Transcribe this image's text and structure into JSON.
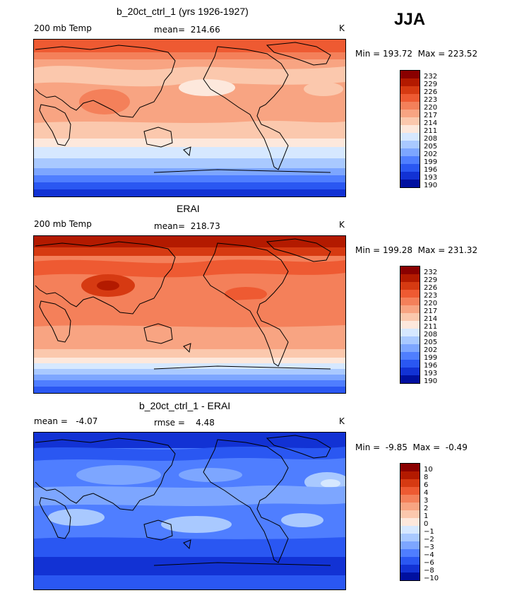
{
  "season": "JJA",
  "panels": [
    {
      "title": "b_20ct_ctrl_1 (yrs 1926-1927)",
      "left_label": "200 mb Temp",
      "center_label": "mean=  214.66",
      "right_label": "K",
      "minmax": "Min = 193.72  Max = 223.52",
      "colorbar": [
        "232",
        "229",
        "226",
        "223",
        "220",
        "217",
        "214",
        "211",
        "208",
        "205",
        "202",
        "199",
        "196",
        "193",
        "190"
      ]
    },
    {
      "title": "ERAI",
      "left_label": "200 mb Temp",
      "center_label": "mean=  218.73",
      "right_label": "K",
      "minmax": "Min = 199.28  Max = 231.32",
      "colorbar": [
        "232",
        "229",
        "226",
        "223",
        "220",
        "217",
        "214",
        "211",
        "208",
        "205",
        "202",
        "199",
        "196",
        "193",
        "190"
      ]
    },
    {
      "title": "b_20ct_ctrl_1 - ERAI",
      "left_label": "mean =   -4.07",
      "center_label": "rmse =    4.48",
      "right_label": "K",
      "minmax": "Min =  -9.85  Max =  -0.49",
      "colorbar": [
        "10",
        "8",
        "6",
        "4",
        "3",
        "2",
        "1",
        "0",
        "−1",
        "−2",
        "−3",
        "−4",
        "−6",
        "−8",
        "−10"
      ]
    }
  ],
  "colors": {
    "scale": [
      "#8a0000",
      "#b31a00",
      "#d63a12",
      "#ee5a32",
      "#f4805a",
      "#f8a482",
      "#fbc8ad",
      "#fde8dc",
      "#d6e8ff",
      "#a9c9ff",
      "#7da6ff",
      "#4f7eff",
      "#2a57f2",
      "#1232d4",
      "#0010a0"
    ],
    "coast": "#000000"
  }
}
